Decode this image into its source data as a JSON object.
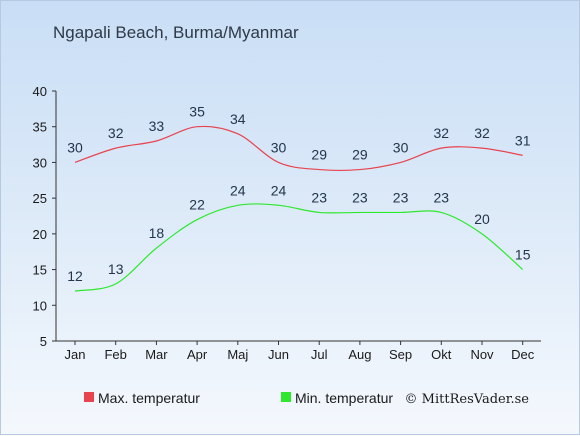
{
  "chart_data": {
    "type": "line",
    "title": "Ngapali Beach, Burma/Myanmar",
    "categories": [
      "Jan",
      "Feb",
      "Mar",
      "Apr",
      "Maj",
      "Jun",
      "Jul",
      "Aug",
      "Sep",
      "Okt",
      "Nov",
      "Dec"
    ],
    "series": [
      {
        "name": "Max. temperatur",
        "color": "#e8434f",
        "values": [
          30,
          32,
          33,
          35,
          34,
          30,
          29,
          29,
          30,
          32,
          32,
          31
        ]
      },
      {
        "name": "Min. temperatur",
        "color": "#2ee82e",
        "values": [
          12,
          13,
          18,
          22,
          24,
          24,
          23,
          23,
          23,
          23,
          20,
          15
        ]
      }
    ],
    "ylim": [
      5,
      40
    ],
    "yticks": [
      5,
      10,
      15,
      20,
      25,
      30,
      35,
      40
    ],
    "grid": false,
    "legend": "bottom"
  },
  "credit": "© MittResVader.se"
}
